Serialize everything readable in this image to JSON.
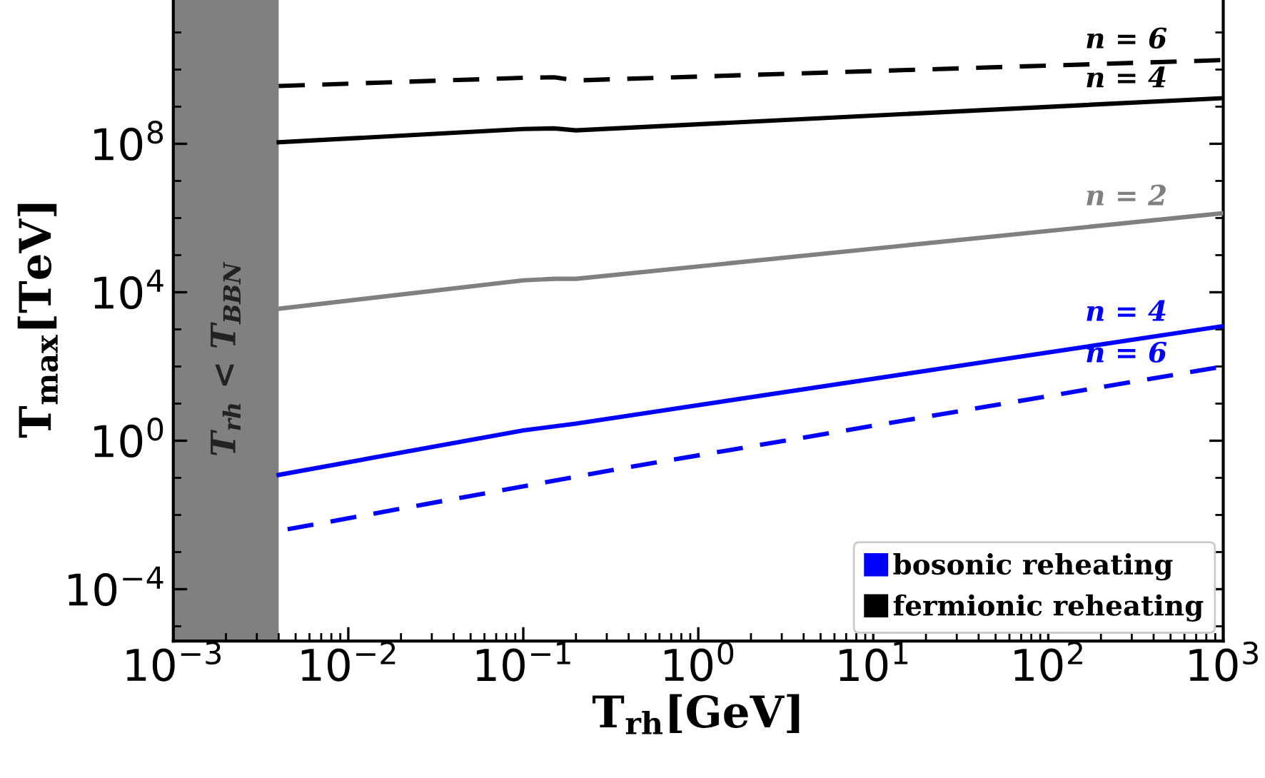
{
  "chart_data": {
    "type": "line",
    "xlabel": "T$_{rh}$[GeV]",
    "ylabel": "T$_{max}$[TeV]",
    "log": "xy",
    "xlim": [
      0.001,
      1000
    ],
    "ylim": [
      4e-06,
      1000000000000.0
    ],
    "xticks": [
      {
        "value": 0.001,
        "label": "10$^{−3}$"
      },
      {
        "value": 0.01,
        "label": "10$^{−2}$"
      },
      {
        "value": 0.1,
        "label": "10$^{−1}$"
      },
      {
        "value": 1,
        "label": "10$^{0}$"
      },
      {
        "value": 10,
        "label": "10$^{1}$"
      },
      {
        "value": 100,
        "label": "10$^{2}$"
      },
      {
        "value": 1000,
        "label": "10$^{3}$"
      }
    ],
    "yticks": [
      {
        "value": 0.0001,
        "label": "10$^{−4}$"
      },
      {
        "value": 1,
        "label": "10$^{0}$"
      },
      {
        "value": 10000,
        "label": "10$^{4}$"
      },
      {
        "value": 100000000,
        "label": "10$^{8}$"
      }
    ],
    "series": [
      {
        "name": "bosonic reheating",
        "color": "#0000ff",
        "line_style": "solid",
        "x": [
          0.004,
          0.1,
          0.2,
          1000
        ],
        "values": [
          0.12,
          1.9,
          2.9,
          1230
        ]
      },
      {
        "color": "#0000ff",
        "line_style": "dashed",
        "x": [
          0.0045,
          0.39,
          1000
        ],
        "values": [
          0.0041,
          0.19,
          100
        ]
      },
      {
        "color": "#808080",
        "line_style": "solid",
        "x": [
          0.004,
          0.1,
          0.15,
          0.2,
          1000
        ],
        "values": [
          3600,
          21000,
          23000,
          23000,
          1350000
        ]
      },
      {
        "name": "fermionic reheating",
        "color": "#000000",
        "line_style": "solid",
        "x": [
          0.004,
          0.1,
          0.15,
          0.2,
          1000
        ],
        "values": [
          110000000,
          250000000,
          260000000,
          230000000,
          1700000000
        ]
      },
      {
        "color": "#000000",
        "line_style": "dashed",
        "x": [
          0.004,
          0.1,
          0.15,
          0.2,
          1000
        ],
        "values": [
          3600000000,
          6000000000,
          6200000000,
          5100000000,
          18000000000
        ]
      }
    ],
    "bands": [
      {
        "axis": "x",
        "from": 0.001,
        "to": 0.004,
        "label": "T$_{rh}$ < T$_{BBN}$",
        "color": "#808080"
      }
    ],
    "annotations": [
      "n = 4",
      "n = 6",
      "n = 2",
      "n = 4",
      "n = 6"
    ],
    "legend": "bottom right"
  }
}
